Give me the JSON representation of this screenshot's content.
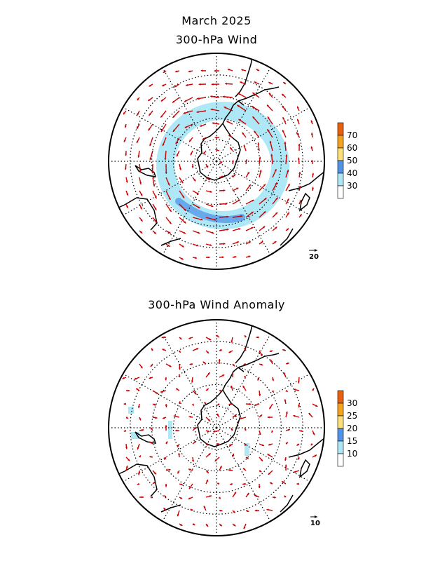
{
  "title": "March 2025",
  "panels": [
    {
      "subtitle": "300-hPa Wind",
      "colorbar_labels": [
        "70",
        "60",
        "50",
        "40",
        "30"
      ],
      "colorbar_colors": [
        "#e85f0c",
        "#f4a41c",
        "#fde07a",
        "#4f94e8",
        "#aee8f6",
        "#ffffff"
      ],
      "reference_vector_label": "20"
    },
    {
      "subtitle": "300-hPa Wind Anomaly",
      "colorbar_labels": [
        "30",
        "25",
        "20",
        "15",
        "10"
      ],
      "colorbar_colors": [
        "#e85f0c",
        "#f4a41c",
        "#fde07a",
        "#4f94e8",
        "#aee8f6",
        "#ffffff"
      ],
      "reference_vector_label": "10"
    }
  ],
  "colors": {
    "vector": "#cc0000",
    "coastline": "#000000",
    "grid": "#000000"
  }
}
